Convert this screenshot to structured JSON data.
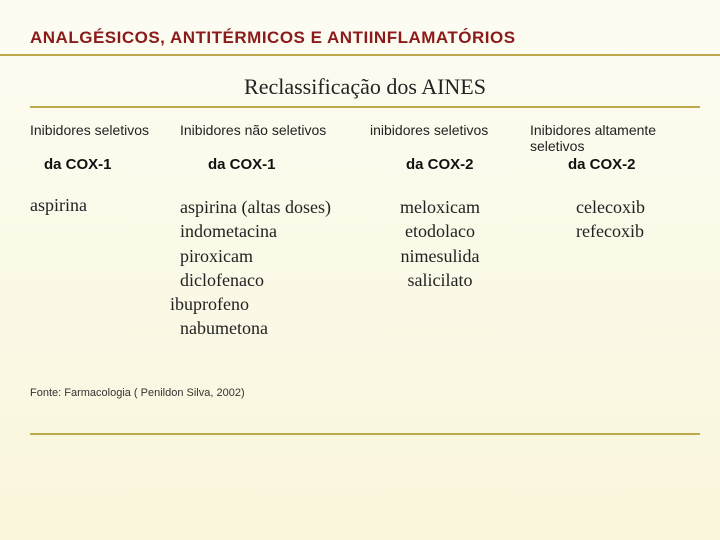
{
  "title": "ANALGÉSICOS, ANTITÉRMICOS E ANTIINFLAMATÓRIOS",
  "subtitle": "Reclassificação dos AINES",
  "headers": {
    "col1": "Inibidores seletivos",
    "col2": "Inibidores não seletivos",
    "col3": "inibidores seletivos",
    "col4": "Inibidores altamente seletivos"
  },
  "bold_headers": {
    "col1": "da COX-1",
    "col2": "da COX-1",
    "col3": "da COX-2",
    "col4": "da COX-2"
  },
  "columns": {
    "col1": [
      "aspirina"
    ],
    "col2": [
      "aspirina (altas doses)",
      "indometacina",
      "piroxicam",
      "diclofenaco",
      "ibuprofeno",
      "nabumetona"
    ],
    "col3": [
      "meloxicam",
      "etodolaco",
      "nimesulida",
      "salicilato"
    ],
    "col4": [
      "celecoxib",
      "refecoxib"
    ]
  },
  "source": "Fonte: Farmacologia ( Penildon Silva, 2002)",
  "colors": {
    "title_color": "#8b1a1a",
    "rule_color": "#bfa94d",
    "bg_top": "#fdfcf3",
    "bg_bottom": "#f9f6db"
  }
}
